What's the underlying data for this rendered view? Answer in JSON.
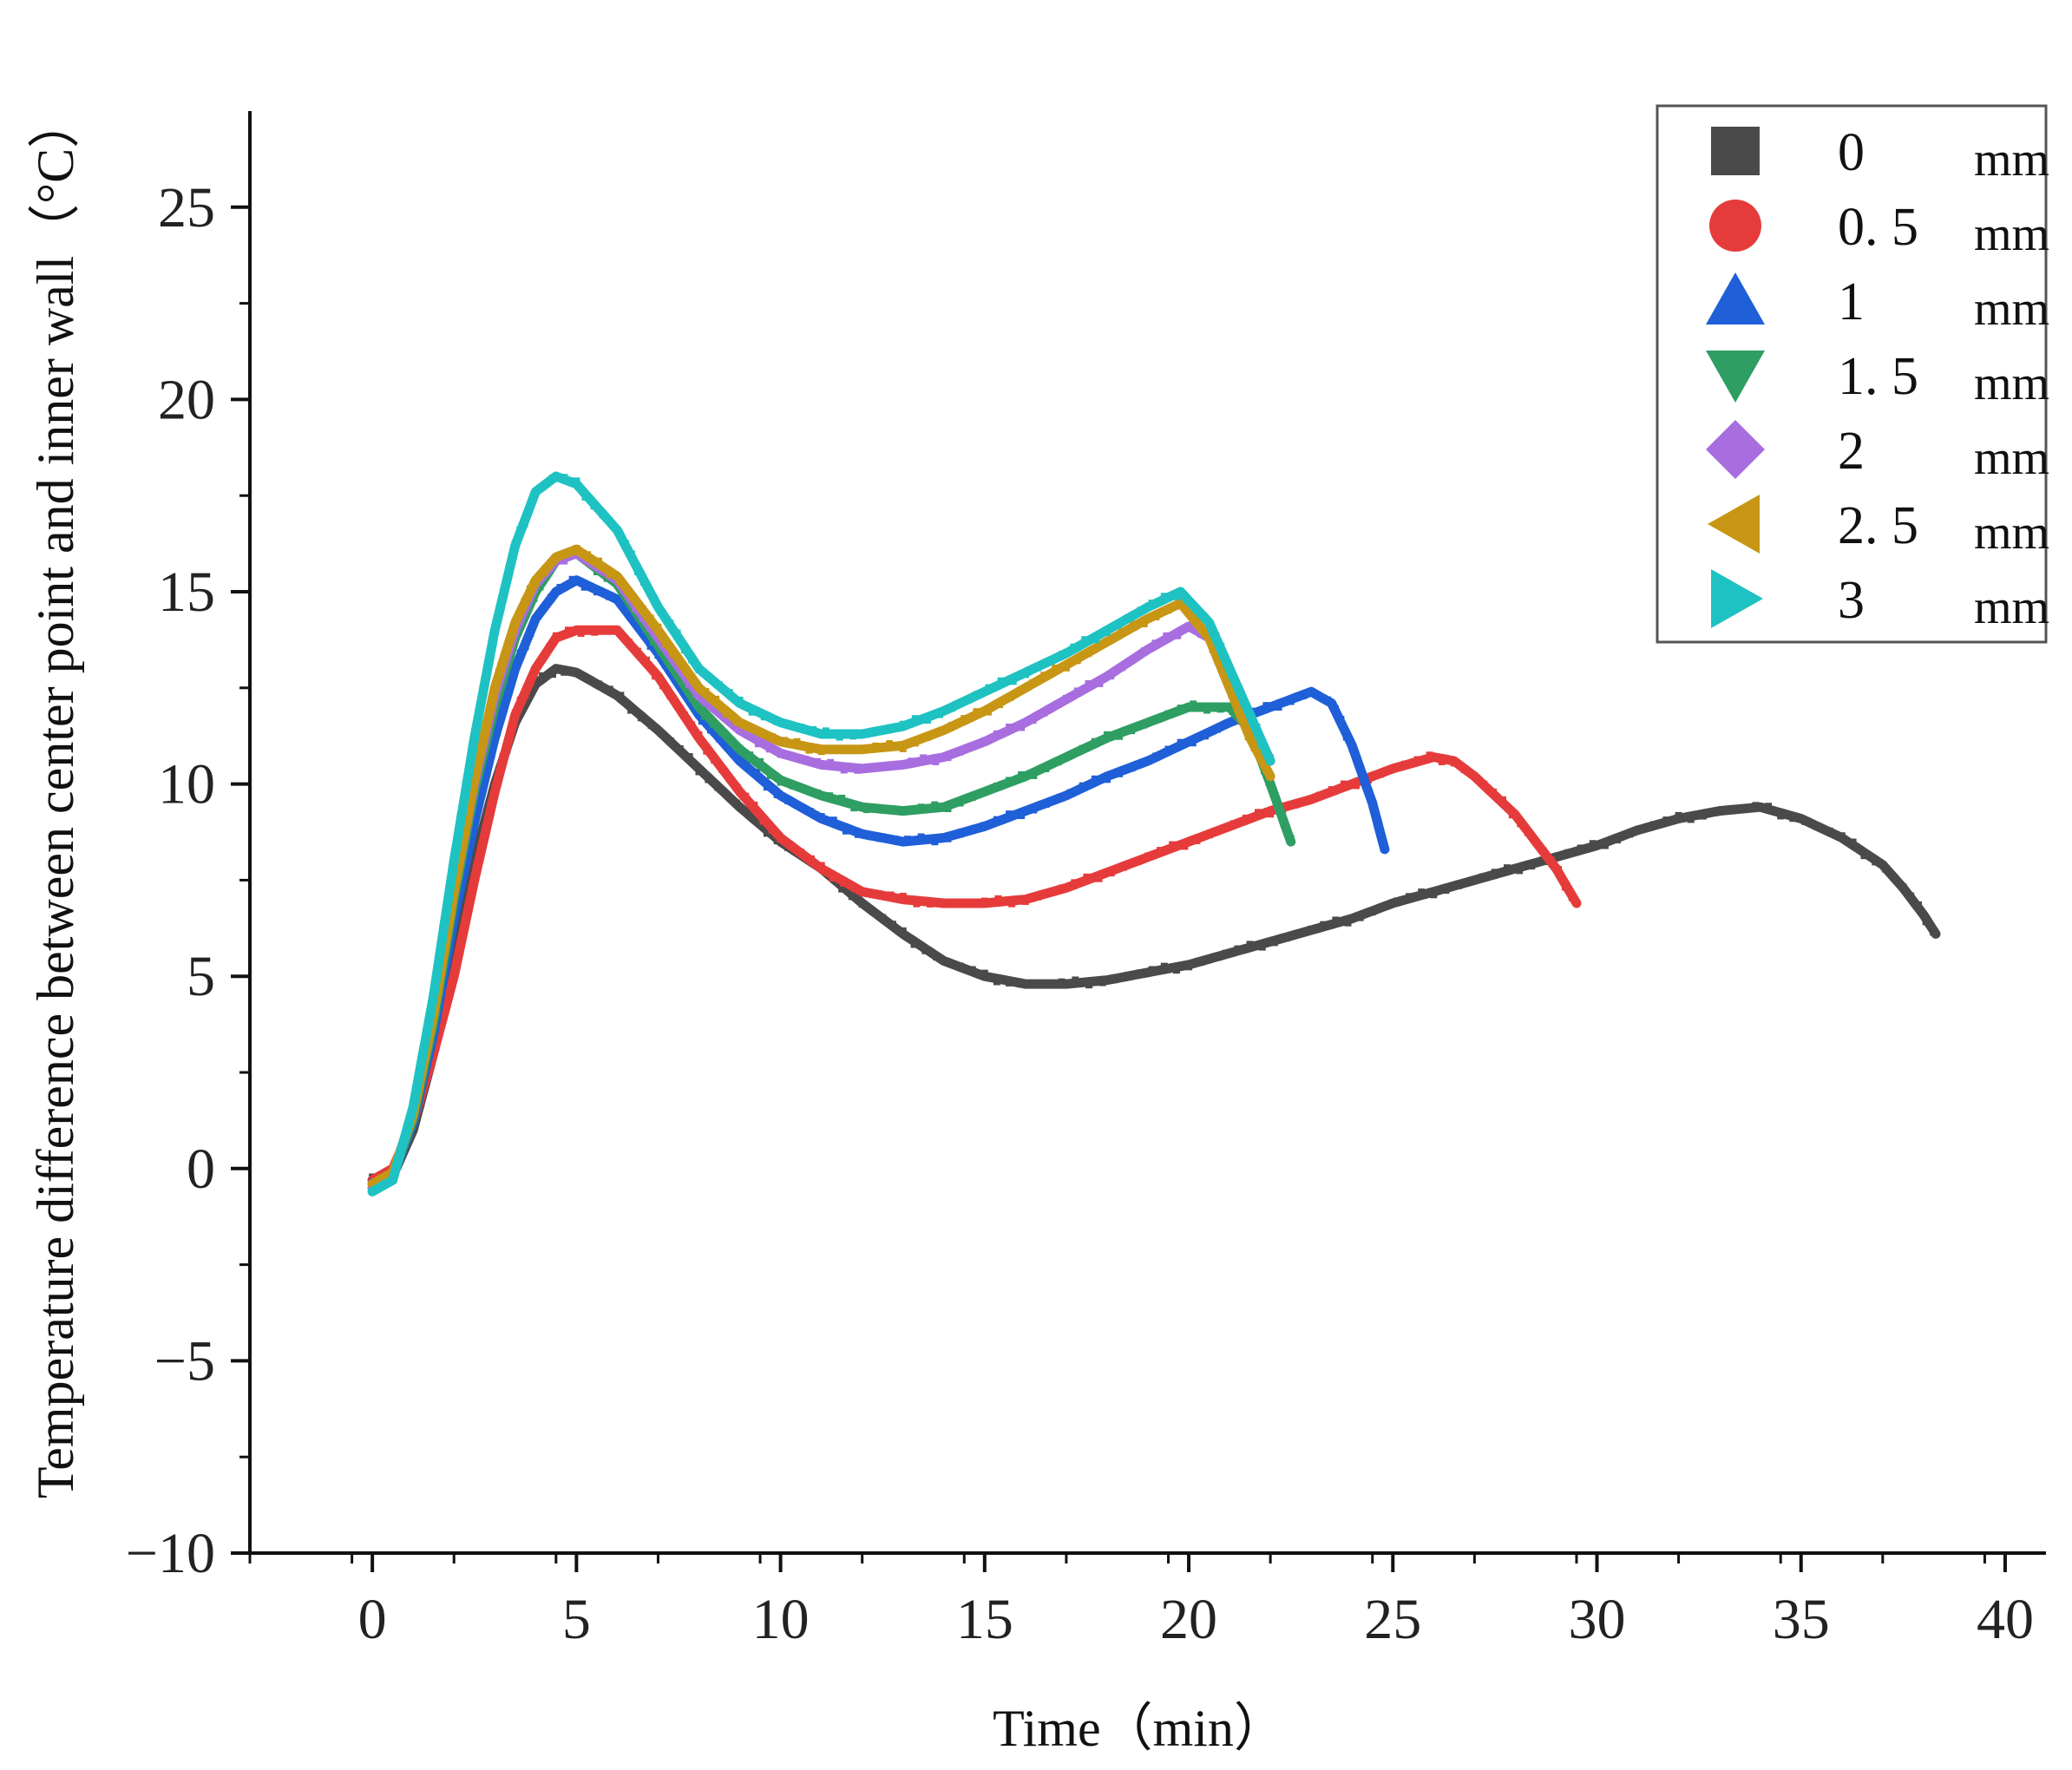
{
  "chart_data": {
    "type": "scatter",
    "title": "",
    "xlabel": "Time（min）",
    "ylabel": "Temperature difference between center point and inner wall（°C）",
    "xlim": [
      -3,
      41
    ],
    "ylim": [
      -10,
      27.5
    ],
    "xticks": [
      0,
      5,
      10,
      15,
      20,
      25,
      30,
      35,
      40
    ],
    "xtick_labels": [
      "0",
      "5",
      "10",
      "15",
      "20",
      "25",
      "30",
      "35",
      "40"
    ],
    "yticks": [
      -10,
      -5,
      0,
      5,
      10,
      15,
      20,
      25
    ],
    "ytick_labels": [
      "−10",
      "−5",
      "0",
      "5",
      "10",
      "15",
      "20",
      "25"
    ],
    "legend_position": "top-right",
    "unit": "mm",
    "series": [
      {
        "name": "0",
        "marker": "square",
        "color": "#4a4a4a",
        "points": [
          [
            0,
            -0.3
          ],
          [
            0.5,
            -0.2
          ],
          [
            1,
            1.0
          ],
          [
            1.5,
            3.0
          ],
          [
            2,
            5.5
          ],
          [
            2.5,
            8.0
          ],
          [
            3,
            10.0
          ],
          [
            3.5,
            11.6
          ],
          [
            4,
            12.6
          ],
          [
            4.5,
            13.0
          ],
          [
            5,
            12.9
          ],
          [
            6,
            12.3
          ],
          [
            7,
            11.4
          ],
          [
            8,
            10.4
          ],
          [
            9,
            9.4
          ],
          [
            10,
            8.5
          ],
          [
            11,
            7.8
          ],
          [
            12,
            6.9
          ],
          [
            13,
            6.1
          ],
          [
            14,
            5.4
          ],
          [
            15,
            5.0
          ],
          [
            16,
            4.8
          ],
          [
            17,
            4.8
          ],
          [
            18,
            4.9
          ],
          [
            19,
            5.1
          ],
          [
            20,
            5.3
          ],
          [
            21,
            5.6
          ],
          [
            22,
            5.9
          ],
          [
            23,
            6.2
          ],
          [
            24,
            6.5
          ],
          [
            25,
            6.9
          ],
          [
            26,
            7.2
          ],
          [
            27,
            7.5
          ],
          [
            28,
            7.8
          ],
          [
            29,
            8.1
          ],
          [
            30,
            8.4
          ],
          [
            31,
            8.8
          ],
          [
            32,
            9.1
          ],
          [
            33,
            9.3
          ],
          [
            34,
            9.4
          ],
          [
            35,
            9.1
          ],
          [
            36,
            8.6
          ],
          [
            37,
            7.9
          ],
          [
            37.5,
            7.3
          ],
          [
            38,
            6.6
          ],
          [
            38.3,
            6.1
          ]
        ]
      },
      {
        "name": "0. 5",
        "marker": "circle",
        "color": "#e63b3b",
        "points": [
          [
            0,
            -0.3
          ],
          [
            0.5,
            0.0
          ],
          [
            1,
            1.2
          ],
          [
            1.5,
            3.0
          ],
          [
            2,
            5.0
          ],
          [
            2.5,
            7.5
          ],
          [
            3,
            9.8
          ],
          [
            3.5,
            11.8
          ],
          [
            4,
            13.0
          ],
          [
            4.5,
            13.8
          ],
          [
            5,
            14.0
          ],
          [
            6,
            14.0
          ],
          [
            7,
            12.8
          ],
          [
            8,
            11.2
          ],
          [
            9,
            9.8
          ],
          [
            10,
            8.6
          ],
          [
            11,
            7.8
          ],
          [
            12,
            7.2
          ],
          [
            13,
            7.0
          ],
          [
            14,
            6.9
          ],
          [
            15,
            6.9
          ],
          [
            16,
            7.0
          ],
          [
            17,
            7.3
          ],
          [
            18,
            7.7
          ],
          [
            19,
            8.1
          ],
          [
            20,
            8.5
          ],
          [
            21,
            8.9
          ],
          [
            22,
            9.3
          ],
          [
            23,
            9.6
          ],
          [
            24,
            10.0
          ],
          [
            25,
            10.4
          ],
          [
            26,
            10.7
          ],
          [
            26.5,
            10.6
          ],
          [
            27,
            10.2
          ],
          [
            28,
            9.2
          ],
          [
            29,
            7.8
          ],
          [
            29.5,
            6.9
          ]
        ]
      },
      {
        "name": "1",
        "marker": "triangle-up",
        "color": "#1f5fd8",
        "points": [
          [
            0,
            -0.4
          ],
          [
            0.5,
            -0.2
          ],
          [
            1,
            1.2
          ],
          [
            1.5,
            3.5
          ],
          [
            2,
            6.5
          ],
          [
            2.5,
            9.0
          ],
          [
            3,
            11.2
          ],
          [
            3.5,
            13.0
          ],
          [
            4,
            14.3
          ],
          [
            4.5,
            15.0
          ],
          [
            5,
            15.3
          ],
          [
            6,
            14.8
          ],
          [
            7,
            13.4
          ],
          [
            8,
            11.8
          ],
          [
            9,
            10.6
          ],
          [
            10,
            9.7
          ],
          [
            11,
            9.1
          ],
          [
            12,
            8.7
          ],
          [
            13,
            8.5
          ],
          [
            14,
            8.6
          ],
          [
            15,
            8.9
          ],
          [
            16,
            9.3
          ],
          [
            17,
            9.7
          ],
          [
            18,
            10.2
          ],
          [
            19,
            10.6
          ],
          [
            20,
            11.1
          ],
          [
            21,
            11.6
          ],
          [
            22,
            12.0
          ],
          [
            23,
            12.4
          ],
          [
            23.5,
            12.1
          ],
          [
            24,
            11.0
          ],
          [
            24.5,
            9.5
          ],
          [
            24.8,
            8.3
          ]
        ]
      },
      {
        "name": "1. 5",
        "marker": "triangle-down",
        "color": "#2e9e62",
        "points": [
          [
            0,
            -0.5
          ],
          [
            0.5,
            -0.2
          ],
          [
            1,
            1.3
          ],
          [
            1.5,
            3.8
          ],
          [
            2,
            7.0
          ],
          [
            2.5,
            9.8
          ],
          [
            3,
            12.0
          ],
          [
            3.5,
            13.8
          ],
          [
            4,
            15.0
          ],
          [
            4.5,
            15.8
          ],
          [
            5,
            16.0
          ],
          [
            6,
            15.2
          ],
          [
            7,
            13.6
          ],
          [
            8,
            12.0
          ],
          [
            9,
            10.9
          ],
          [
            10,
            10.1
          ],
          [
            11,
            9.7
          ],
          [
            12,
            9.4
          ],
          [
            13,
            9.3
          ],
          [
            14,
            9.4
          ],
          [
            15,
            9.8
          ],
          [
            16,
            10.2
          ],
          [
            17,
            10.7
          ],
          [
            18,
            11.2
          ],
          [
            19,
            11.6
          ],
          [
            20,
            12.0
          ],
          [
            21,
            12.0
          ],
          [
            21.5,
            11.4
          ],
          [
            22,
            10.0
          ],
          [
            22.5,
            8.5
          ]
        ]
      },
      {
        "name": "2",
        "marker": "diamond",
        "color": "#a86ee0",
        "points": [
          [
            0,
            -0.5
          ],
          [
            0.5,
            -0.2
          ],
          [
            1,
            1.5
          ],
          [
            1.5,
            4.0
          ],
          [
            2,
            7.2
          ],
          [
            2.5,
            10.0
          ],
          [
            3,
            12.3
          ],
          [
            3.5,
            14.0
          ],
          [
            4,
            15.2
          ],
          [
            4.5,
            15.8
          ],
          [
            5,
            16.0
          ],
          [
            6,
            15.3
          ],
          [
            7,
            13.8
          ],
          [
            8,
            12.3
          ],
          [
            9,
            11.4
          ],
          [
            10,
            10.8
          ],
          [
            11,
            10.5
          ],
          [
            12,
            10.4
          ],
          [
            13,
            10.5
          ],
          [
            14,
            10.7
          ],
          [
            15,
            11.1
          ],
          [
            16,
            11.6
          ],
          [
            17,
            12.2
          ],
          [
            18,
            12.8
          ],
          [
            19,
            13.5
          ],
          [
            20,
            14.1
          ],
          [
            20.5,
            13.8
          ],
          [
            21,
            12.5
          ],
          [
            21.5,
            11.5
          ],
          [
            22,
            10.6
          ]
        ]
      },
      {
        "name": "2. 5",
        "marker": "triangle-left",
        "color": "#c79614",
        "points": [
          [
            0,
            -0.4
          ],
          [
            0.5,
            -0.1
          ],
          [
            1,
            1.4
          ],
          [
            1.5,
            4.0
          ],
          [
            2,
            7.2
          ],
          [
            2.5,
            10.1
          ],
          [
            3,
            12.5
          ],
          [
            3.5,
            14.2
          ],
          [
            4,
            15.3
          ],
          [
            4.5,
            15.9
          ],
          [
            5,
            16.1
          ],
          [
            6,
            15.4
          ],
          [
            7,
            14.0
          ],
          [
            8,
            12.5
          ],
          [
            9,
            11.6
          ],
          [
            10,
            11.1
          ],
          [
            11,
            10.9
          ],
          [
            12,
            10.9
          ],
          [
            13,
            11.0
          ],
          [
            14,
            11.4
          ],
          [
            15,
            11.9
          ],
          [
            16,
            12.5
          ],
          [
            17,
            13.1
          ],
          [
            18,
            13.7
          ],
          [
            19,
            14.3
          ],
          [
            19.8,
            14.7
          ],
          [
            20.5,
            13.8
          ],
          [
            21,
            12.5
          ],
          [
            21.5,
            11.2
          ],
          [
            22,
            10.2
          ]
        ]
      },
      {
        "name": "3",
        "marker": "triangle-right",
        "color": "#1fc2c2",
        "points": [
          [
            0,
            -0.6
          ],
          [
            0.5,
            -0.3
          ],
          [
            1,
            1.6
          ],
          [
            1.5,
            4.5
          ],
          [
            2,
            8.0
          ],
          [
            2.5,
            11.2
          ],
          [
            3,
            14.0
          ],
          [
            3.5,
            16.2
          ],
          [
            4,
            17.6
          ],
          [
            4.5,
            18.0
          ],
          [
            5,
            17.8
          ],
          [
            6,
            16.6
          ],
          [
            7,
            14.6
          ],
          [
            8,
            13.0
          ],
          [
            9,
            12.1
          ],
          [
            10,
            11.6
          ],
          [
            11,
            11.3
          ],
          [
            12,
            11.3
          ],
          [
            13,
            11.5
          ],
          [
            14,
            11.9
          ],
          [
            15,
            12.4
          ],
          [
            16,
            12.9
          ],
          [
            17,
            13.4
          ],
          [
            18,
            14.0
          ],
          [
            19,
            14.6
          ],
          [
            19.8,
            15.0
          ],
          [
            20.5,
            14.2
          ],
          [
            21,
            13.0
          ],
          [
            21.5,
            11.8
          ],
          [
            22,
            10.6
          ]
        ]
      }
    ]
  }
}
